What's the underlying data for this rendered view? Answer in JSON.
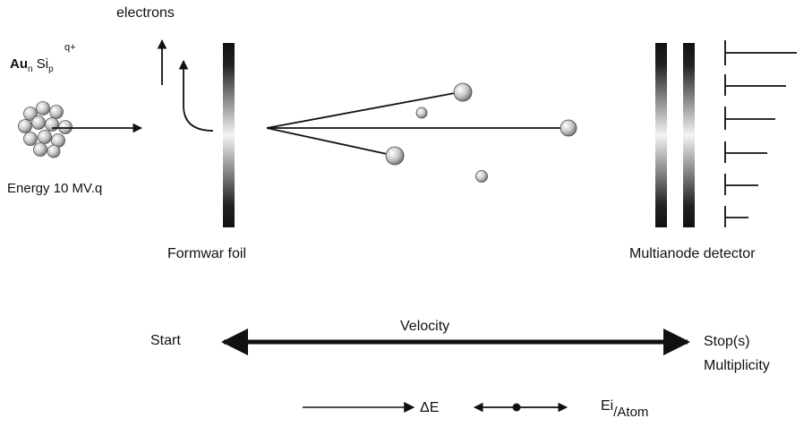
{
  "labels": {
    "electrons": "electrons",
    "projectile_base": "Au",
    "projectile_n": "n",
    "projectile_si": "Si",
    "projectile_p": "p",
    "projectile_charge": "q+",
    "energy": "Energy 10 MV.q",
    "foil": "Formwar foil",
    "detector": "Multianode detector",
    "start": "Start",
    "velocity": "Velocity",
    "stop": "Stop(s)",
    "multiplicity": "Multiplicity",
    "delta_e": "ΔE",
    "ei_main": "Ei",
    "ei_sub": "/Atom"
  },
  "colors": {
    "ink": "#111111",
    "sphere_light": "#f4f4f4",
    "sphere_dark": "#8a8a8a"
  }
}
